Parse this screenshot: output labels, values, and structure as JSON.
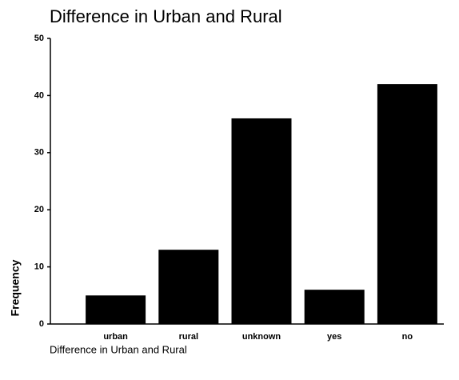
{
  "chart_data": {
    "type": "bar",
    "title": "Difference in Urban and Rural",
    "categories": [
      "urban",
      "rural",
      "unknown",
      "yes",
      "no"
    ],
    "values": [
      5,
      13,
      36,
      6,
      42
    ],
    "color": "#000000",
    "xlabel": "Difference in Urban and Rural",
    "ylabel": "Frequency",
    "ylim": [
      0,
      50
    ],
    "yticks": [
      0,
      10,
      20,
      30,
      40,
      50
    ],
    "grid": false
  }
}
